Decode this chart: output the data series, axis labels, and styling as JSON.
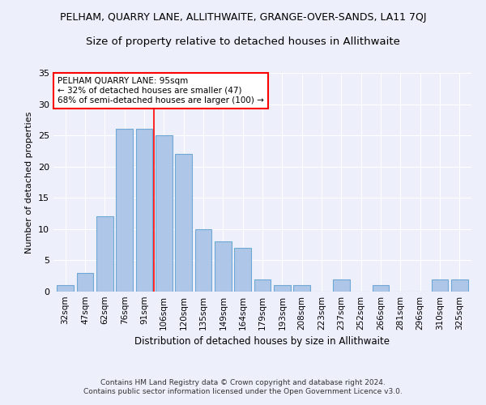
{
  "title": "PELHAM, QUARRY LANE, ALLITHWAITE, GRANGE-OVER-SANDS, LA11 7QJ",
  "subtitle": "Size of property relative to detached houses in Allithwaite",
  "xlabel": "Distribution of detached houses by size in Allithwaite",
  "ylabel": "Number of detached properties",
  "categories": [
    "32sqm",
    "47sqm",
    "62sqm",
    "76sqm",
    "91sqm",
    "106sqm",
    "120sqm",
    "135sqm",
    "149sqm",
    "164sqm",
    "179sqm",
    "193sqm",
    "208sqm",
    "223sqm",
    "237sqm",
    "252sqm",
    "266sqm",
    "281sqm",
    "296sqm",
    "310sqm",
    "325sqm"
  ],
  "values": [
    1,
    3,
    12,
    26,
    26,
    25,
    22,
    10,
    8,
    7,
    2,
    1,
    1,
    0,
    2,
    0,
    1,
    0,
    0,
    2,
    2
  ],
  "bar_color": "#aec6e8",
  "bar_edge_color": "#6fa8d4",
  "annotation_text_line1": "PELHAM QUARRY LANE: 95sqm",
  "annotation_text_line2": "← 32% of detached houses are smaller (47)",
  "annotation_text_line3": "68% of semi-detached houses are larger (100) →",
  "annotation_box_color": "white",
  "annotation_box_edge": "red",
  "red_line_x": 4.5,
  "ylim": [
    0,
    35
  ],
  "yticks": [
    0,
    5,
    10,
    15,
    20,
    25,
    30,
    35
  ],
  "footer_line1": "Contains HM Land Registry data © Crown copyright and database right 2024.",
  "footer_line2": "Contains public sector information licensed under the Open Government Licence v3.0.",
  "background_color": "#edf0fb",
  "grid_color": "#ffffff",
  "title_fontsize": 9,
  "subtitle_fontsize": 9.5,
  "bar_width": 0.85
}
